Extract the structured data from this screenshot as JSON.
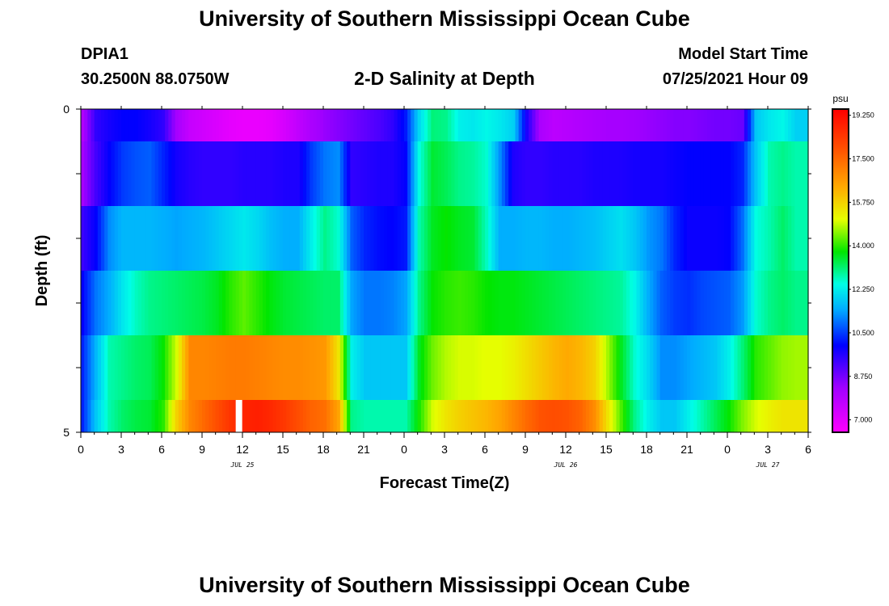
{
  "header": {
    "title_top": "University of Southern Mississippi Ocean Cube",
    "station_id": "DPIA1",
    "coords": "30.2500N  88.0750W",
    "plot_title": "2-D Salinity at Depth",
    "model_start_label": "Model Start Time",
    "model_start_value": "07/25/2021 Hour 09",
    "title_bottom": "University of Southern Mississippi Ocean Cube"
  },
  "chart_data": {
    "type": "heatmap",
    "title": "2-D Salinity at Depth",
    "xlabel": "Forecast Time(Z)",
    "ylabel": "Depth (ft)",
    "x_tick_labels": [
      "0",
      "3",
      "6",
      "9",
      "12",
      "15",
      "18",
      "21",
      "0",
      "3",
      "6",
      "9",
      "12",
      "15",
      "18",
      "21",
      "0",
      "3",
      "6"
    ],
    "x_day_labels": [
      {
        "label": "JUL 25",
        "hour": 12
      },
      {
        "label": "JUL 26",
        "hour": 36
      },
      {
        "label": "JUL 27",
        "hour": 51
      }
    ],
    "x_range_hours": [
      0,
      54
    ],
    "y_range": [
      0,
      5
    ],
    "y_tick_labels": [
      "0",
      "5"
    ],
    "depth_levels": [
      0.25,
      1.25,
      2.25,
      3.25,
      4.25,
      4.75
    ],
    "colorbar": {
      "unit": "psu",
      "min": 6.5,
      "max": 19.5,
      "tick_values": [
        7.0,
        8.75,
        10.5,
        12.25,
        14.0,
        15.75,
        17.5,
        19.25
      ],
      "tick_labels": [
        "7.000",
        "8.750",
        "10.500",
        "12.250",
        "14.000",
        "15.750",
        "17.500",
        "19.250"
      ]
    },
    "missing_value_hour": 11.5,
    "time_hours": [
      0,
      1,
      2,
      3,
      4,
      5,
      6,
      7,
      8,
      9,
      10,
      11,
      12,
      13,
      14,
      15,
      16,
      17,
      18,
      19,
      20,
      21,
      22,
      23,
      24,
      25,
      26,
      27,
      28,
      29,
      30,
      31,
      32,
      33,
      34,
      35,
      36,
      37,
      38,
      39,
      40,
      41,
      42,
      43,
      44,
      45,
      46,
      47,
      48,
      49,
      50,
      51,
      52,
      53
    ],
    "salinity_psu": [
      [
        8.0,
        9.5,
        9.8,
        10.0,
        10.0,
        9.8,
        9.5,
        8.2,
        7.6,
        7.4,
        7.2,
        7.0,
        6.9,
        6.9,
        7.0,
        7.3,
        7.7,
        8.1,
        8.4,
        8.6,
        8.8,
        9.0,
        9.2,
        9.5,
        10.2,
        12.0,
        13.1,
        13.0,
        12.3,
        12.2,
        12.4,
        12.2,
        11.9,
        9.7,
        8.1,
        7.8,
        7.9,
        8.0,
        8.1,
        8.2,
        8.2,
        8.3,
        8.4,
        8.5,
        8.6,
        8.6,
        8.7,
        8.8,
        8.8,
        8.9,
        11.8,
        12.2,
        12.4,
        11.9
      ],
      [
        8.2,
        9.3,
        10.0,
        10.5,
        10.7,
        10.8,
        10.3,
        9.8,
        9.6,
        9.5,
        9.5,
        9.5,
        9.6,
        9.6,
        9.6,
        9.7,
        9.7,
        10.5,
        11.0,
        11.2,
        9.5,
        9.6,
        9.7,
        9.7,
        10.0,
        12.5,
        13.5,
        13.3,
        13.0,
        12.9,
        12.6,
        11.2,
        9.7,
        9.5,
        9.5,
        9.6,
        9.6,
        9.6,
        9.7,
        9.7,
        9.7,
        9.8,
        9.8,
        9.8,
        9.9,
        10.0,
        10.0,
        10.0,
        10.0,
        10.3,
        11.8,
        12.8,
        13.0,
        12.8
      ],
      [
        9.4,
        10.0,
        11.2,
        11.6,
        11.6,
        11.6,
        11.5,
        11.4,
        11.5,
        11.6,
        11.8,
        12.0,
        12.2,
        12.0,
        11.7,
        11.5,
        11.5,
        12.3,
        13.0,
        12.6,
        10.8,
        10.3,
        10.1,
        10.0,
        10.2,
        12.8,
        13.6,
        13.8,
        13.6,
        13.5,
        12.7,
        11.5,
        11.5,
        11.6,
        11.6,
        11.5,
        11.5,
        11.6,
        11.7,
        11.9,
        12.1,
        11.8,
        11.3,
        11.0,
        10.3,
        9.9,
        9.9,
        9.9,
        10.0,
        10.9,
        12.5,
        12.8,
        13.2,
        12.8
      ],
      [
        10.0,
        11.0,
        11.5,
        12.2,
        12.7,
        13.0,
        13.1,
        13.2,
        13.3,
        13.4,
        13.6,
        14.0,
        14.3,
        14.0,
        13.7,
        13.5,
        13.4,
        13.3,
        13.2,
        13.2,
        11.4,
        11.0,
        11.0,
        11.1,
        11.4,
        13.0,
        13.8,
        14.0,
        14.1,
        14.0,
        13.8,
        13.7,
        13.7,
        13.6,
        13.5,
        13.4,
        13.3,
        13.2,
        13.1,
        13.0,
        12.9,
        12.4,
        11.5,
        10.8,
        10.5,
        10.4,
        10.6,
        10.7,
        10.8,
        11.3,
        12.6,
        13.0,
        13.2,
        13.0
      ],
      [
        10.3,
        11.6,
        12.8,
        13.0,
        13.2,
        13.3,
        13.8,
        15.0,
        17.0,
        17.0,
        17.1,
        17.2,
        17.2,
        17.1,
        17.0,
        16.9,
        16.9,
        16.8,
        16.7,
        15.5,
        12.3,
        11.8,
        11.8,
        11.8,
        11.8,
        13.6,
        14.4,
        14.8,
        15.0,
        15.0,
        15.1,
        15.1,
        15.3,
        15.6,
        15.9,
        16.2,
        16.4,
        16.2,
        15.8,
        14.7,
        13.6,
        12.6,
        12.0,
        11.2,
        11.2,
        11.4,
        11.6,
        11.8,
        12.3,
        13.1,
        14.0,
        14.3,
        14.6,
        14.7
      ],
      [
        10.3,
        11.8,
        12.8,
        13.2,
        13.4,
        13.5,
        14.0,
        15.8,
        17.0,
        17.5,
        18.0,
        18.5,
        18.8,
        18.9,
        18.7,
        18.4,
        18.0,
        17.6,
        17.4,
        16.5,
        13.0,
        12.8,
        12.8,
        12.8,
        12.8,
        13.9,
        15.0,
        15.5,
        15.8,
        16.0,
        16.2,
        16.5,
        17.0,
        17.5,
        17.9,
        18.0,
        17.9,
        17.6,
        16.9,
        15.5,
        14.2,
        13.0,
        12.3,
        11.8,
        11.8,
        12.3,
        12.8,
        13.3,
        13.8,
        14.5,
        15.0,
        15.3,
        15.5,
        15.5
      ]
    ]
  }
}
